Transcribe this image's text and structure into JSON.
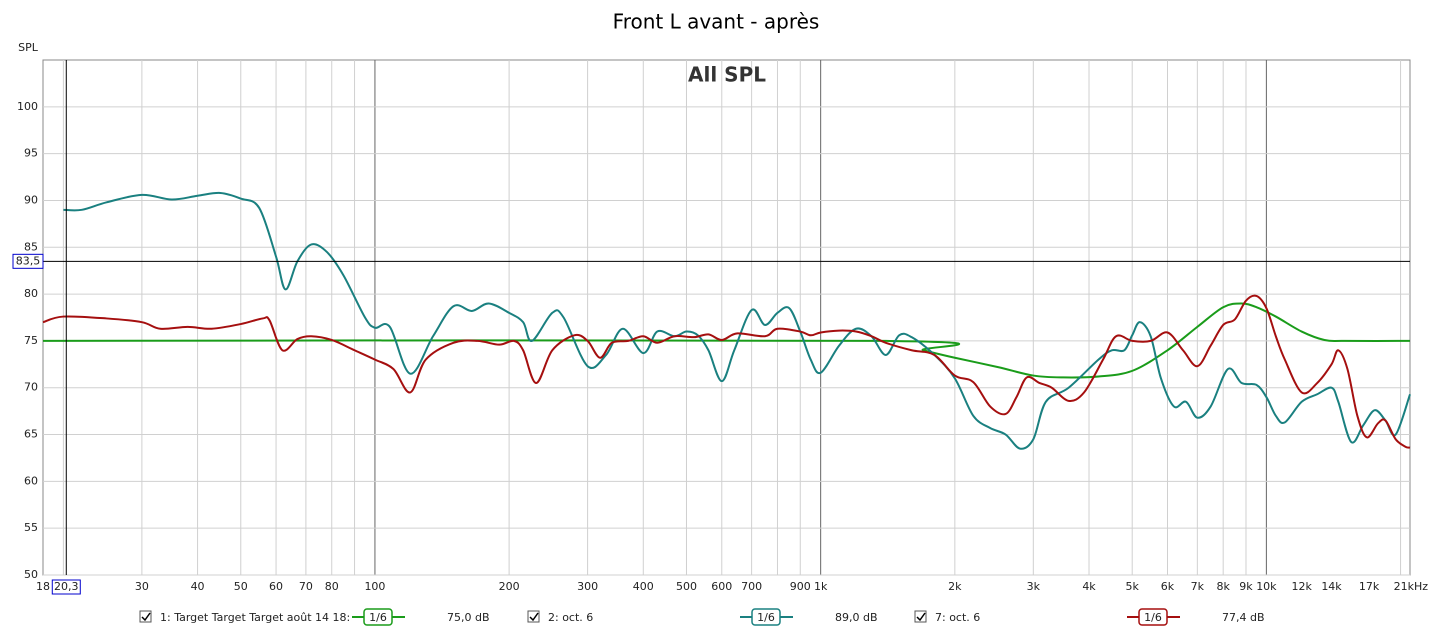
{
  "chart_data": {
    "type": "line",
    "title": "Front L avant - après",
    "subtitle": "All SPL",
    "y_label": "SPL",
    "log_x": true,
    "grid": true,
    "xlim": [
      18,
      21000
    ],
    "ylim": [
      50,
      105
    ],
    "yticks": [
      50,
      55,
      60,
      65,
      70,
      75,
      80,
      85,
      90,
      95,
      100
    ],
    "xticks": [
      {
        "value": 18,
        "label": "18"
      },
      {
        "value": 30,
        "label": "30"
      },
      {
        "value": 40,
        "label": "40"
      },
      {
        "value": 50,
        "label": "50"
      },
      {
        "value": 60,
        "label": "60"
      },
      {
        "value": 70,
        "label": "70"
      },
      {
        "value": 80,
        "label": "80"
      },
      {
        "value": 100,
        "label": "100"
      },
      {
        "value": 200,
        "label": "200"
      },
      {
        "value": 300,
        "label": "300"
      },
      {
        "value": 400,
        "label": "400"
      },
      {
        "value": 500,
        "label": "500"
      },
      {
        "value": 600,
        "label": "600"
      },
      {
        "value": 700,
        "label": "700"
      },
      {
        "value": 900,
        "label": "900"
      },
      {
        "value": 1000,
        "label": "1k"
      },
      {
        "value": 2000,
        "label": "2k"
      },
      {
        "value": 3000,
        "label": "3k"
      },
      {
        "value": 4000,
        "label": "4k"
      },
      {
        "value": 5000,
        "label": "5k"
      },
      {
        "value": 6000,
        "label": "6k"
      },
      {
        "value": 7000,
        "label": "7k"
      },
      {
        "value": 8000,
        "label": "8k"
      },
      {
        "value": 9000,
        "label": "9k"
      },
      {
        "value": 10000,
        "label": "10k"
      },
      {
        "value": 12000,
        "label": "12k"
      },
      {
        "value": 14000,
        "label": "14k"
      },
      {
        "value": 17000,
        "label": "17k"
      },
      {
        "value": 21000,
        "label": "21kHz"
      }
    ],
    "xgrid": [
      20,
      30,
      40,
      50,
      60,
      70,
      80,
      90,
      100,
      200,
      300,
      400,
      500,
      600,
      700,
      800,
      900,
      1000,
      2000,
      3000,
      4000,
      5000,
      6000,
      7000,
      8000,
      9000,
      10000,
      20000
    ],
    "cursor": {
      "x": {
        "value": 20.3,
        "label": "20,3"
      },
      "y": {
        "value": 83.5,
        "label": "83,5"
      }
    },
    "series": [
      {
        "name": "1: Target Target Target août 14 18:",
        "color": "#1a9c1a",
        "smoothing": "1/6",
        "reading": "75,0 dB",
        "x": [
          18,
          1400,
          1700,
          2000,
          2500,
          3000,
          3500,
          4200,
          5000,
          6000,
          7000,
          8000,
          8800,
          9500,
          10500,
          12000,
          13500,
          15000,
          21000
        ],
        "values": [
          75,
          75,
          74,
          73.2,
          72.2,
          71.3,
          71.1,
          71.2,
          71.8,
          74,
          76.5,
          78.6,
          79,
          78.6,
          77.6,
          76,
          75.1,
          75,
          75
        ]
      },
      {
        "name": "2: oct. 6",
        "color": "#1a8080",
        "smoothing": "1/6",
        "reading": "89,0 dB",
        "x": [
          20,
          22,
          25,
          30,
          35,
          40,
          45,
          50,
          55,
          60,
          63,
          67,
          72,
          78,
          85,
          95,
          100,
          108,
          120,
          135,
          150,
          165,
          180,
          200,
          215,
          225,
          250,
          265,
          300,
          330,
          360,
          400,
          430,
          470,
          500,
          530,
          560,
          600,
          640,
          700,
          750,
          800,
          850,
          900,
          950,
          1000,
          1100,
          1200,
          1300,
          1400,
          1500,
          1600,
          1800,
          2000,
          2200,
          2400,
          2600,
          2800,
          3000,
          3200,
          3600,
          4200,
          4500,
          4800,
          5000,
          5200,
          5500,
          5800,
          6200,
          6600,
          7000,
          7500,
          8200,
          8800,
          9500,
          10000,
          10500,
          11000,
          12000,
          13000,
          14000,
          14500,
          15500,
          16500,
          17500,
          18500,
          19500,
          21000
        ],
        "values": [
          89,
          89,
          89.8,
          90.6,
          90.1,
          90.5,
          90.8,
          90.2,
          89.2,
          84,
          80.5,
          83.5,
          85.3,
          84.5,
          82,
          77.5,
          76.4,
          76.5,
          71.5,
          75.5,
          78.7,
          78.2,
          79,
          78,
          77,
          75,
          78,
          77.5,
          72.3,
          73.5,
          76.3,
          73.7,
          76,
          75.5,
          76,
          75.6,
          74,
          70.7,
          74,
          78.3,
          76.7,
          78,
          78.5,
          76,
          73,
          71.6,
          74.5,
          76.3,
          75.5,
          73.5,
          75.6,
          75.4,
          73.5,
          71,
          67,
          65.7,
          65,
          63.5,
          64.5,
          68.5,
          70,
          73,
          74,
          74,
          75.6,
          77,
          75.5,
          71,
          68,
          68.5,
          66.8,
          68,
          72,
          70.5,
          70.3,
          69,
          67,
          66.3,
          68.5,
          69.3,
          70,
          68.5,
          64.2,
          66,
          67.6,
          66.5,
          65,
          69.3
        ]
      },
      {
        "name": "7: oct. 6",
        "color": "#a50f0f",
        "smoothing": "1/6",
        "reading": "77,4 dB",
        "x": [
          18,
          20,
          25,
          30,
          33,
          38,
          43,
          50,
          56,
          58,
          62,
          67,
          72,
          80,
          90,
          100,
          110,
          120,
          130,
          150,
          170,
          190,
          205,
          215,
          230,
          250,
          280,
          300,
          320,
          340,
          370,
          400,
          430,
          470,
          520,
          560,
          600,
          650,
          750,
          800,
          900,
          950,
          1000,
          1100,
          1200,
          1300,
          1400,
          1600,
          1800,
          2000,
          2200,
          2400,
          2600,
          2750,
          2900,
          3100,
          3300,
          3600,
          3900,
          4300,
          4600,
          5000,
          5500,
          6000,
          6500,
          7000,
          7500,
          8000,
          8500,
          9000,
          9500,
          10000,
          10500,
          11000,
          12000,
          13000,
          14000,
          14500,
          15200,
          16000,
          16800,
          17800,
          18500,
          19500,
          20500,
          21000
        ],
        "values": [
          77,
          77.6,
          77.4,
          77,
          76.3,
          76.5,
          76.3,
          76.8,
          77.4,
          77.2,
          74,
          75.2,
          75.5,
          75.1,
          74,
          73,
          72,
          69.5,
          73,
          74.8,
          75,
          74.6,
          75,
          74,
          70.5,
          74,
          75.6,
          75,
          73.2,
          74.8,
          75,
          75.5,
          74.8,
          75.5,
          75.4,
          75.7,
          75.1,
          75.8,
          75.5,
          76.3,
          76,
          75.6,
          75.9,
          76.1,
          76,
          75.5,
          74.8,
          74,
          73.5,
          71.3,
          70.6,
          68,
          67.2,
          69,
          71.1,
          70.5,
          70,
          68.6,
          69.5,
          73,
          75.5,
          75,
          75,
          75.9,
          74,
          72.3,
          74.5,
          76.7,
          77.3,
          79.3,
          79.8,
          78.5,
          75.5,
          73,
          69.5,
          70.5,
          72.5,
          74,
          72,
          67,
          64.7,
          66.2,
          66.5,
          64.5,
          63.7,
          63.6
        ]
      }
    ]
  }
}
